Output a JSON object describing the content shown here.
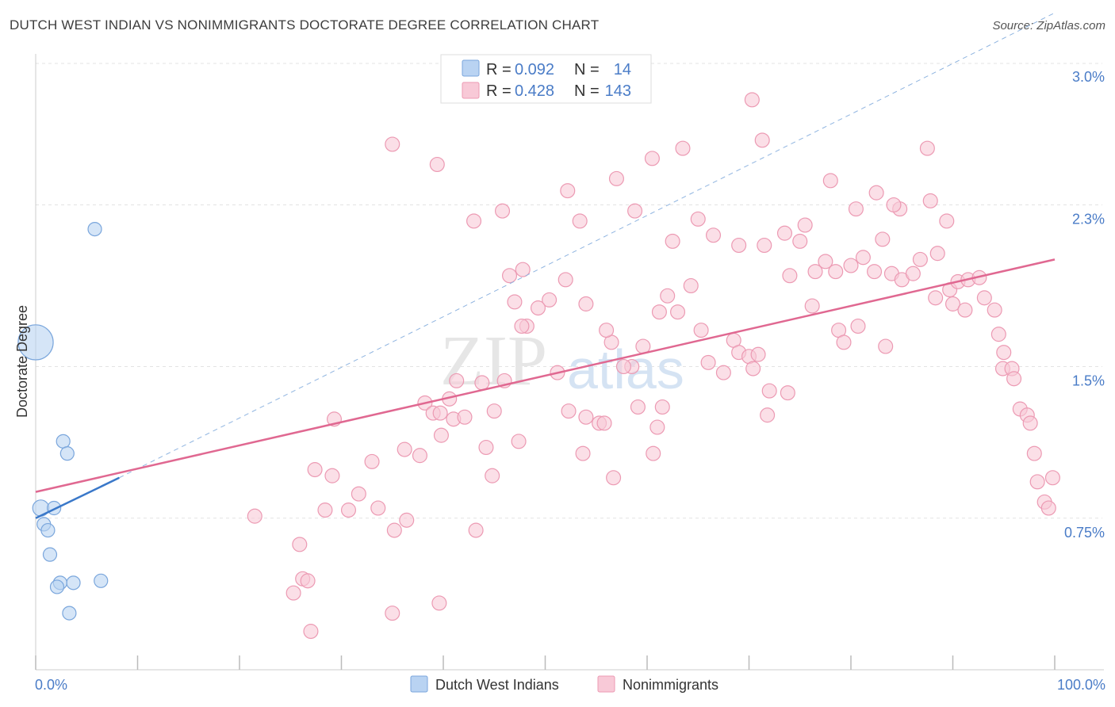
{
  "colors": {
    "blue_fill": "#b9d3f2",
    "blue_stroke": "#7aa6dc",
    "blue_line": "#3a78c9",
    "pink_fill": "#f8c9d7",
    "pink_stroke": "#ec9ab3",
    "pink_line": "#e06891",
    "label_blue": "#4a7cc7",
    "grid": "#e3e3e3"
  },
  "chart_data": {
    "type": "scatter",
    "title": "DUTCH WEST INDIAN VS NONIMMIGRANTS DOCTORATE DEGREE CORRELATION CHART",
    "source": "Source: ZipAtlas.com",
    "xlabel": "",
    "ylabel": "Doctorate Degree",
    "xlim": [
      0,
      100
    ],
    "ylim": [
      0,
      3.0
    ],
    "x_tick_labels": [
      {
        "value": 0,
        "label": "0.0%"
      },
      {
        "value": 100,
        "label": "100.0%"
      }
    ],
    "y_tick_labels": [
      {
        "value": 0.75,
        "label": "0.75%"
      },
      {
        "value": 1.5,
        "label": "1.5%"
      },
      {
        "value": 2.3,
        "label": "2.3%"
      },
      {
        "value": 3.0,
        "label": "3.0%"
      }
    ],
    "watermark": [
      "ZIP",
      "atlas"
    ],
    "legend": [
      {
        "series": "Dutch West Indians",
        "r_label": "R =",
        "r_value": "0.092",
        "n_label": "N =",
        "n_value": "14"
      },
      {
        "series": "Nonimmigrants",
        "r_label": "R =",
        "r_value": "0.428",
        "n_label": "N =",
        "n_value": "143"
      }
    ],
    "series": [
      {
        "name": "Dutch West Indians",
        "trend": {
          "x0": 0,
          "y0": 0.75,
          "x1": 8.2,
          "y1": 0.95,
          "dash_to": {
            "x": 100,
            "y": 3.25
          }
        },
        "points": [
          {
            "x": 0.0,
            "y": 1.62,
            "s": 2.6
          },
          {
            "x": 5.8,
            "y": 2.18,
            "s": 1
          },
          {
            "x": 0.5,
            "y": 0.8,
            "s": 1.2
          },
          {
            "x": 1.8,
            "y": 0.8,
            "s": 1
          },
          {
            "x": 0.8,
            "y": 0.72,
            "s": 1
          },
          {
            "x": 1.2,
            "y": 0.69,
            "s": 1
          },
          {
            "x": 2.7,
            "y": 1.13,
            "s": 1
          },
          {
            "x": 3.1,
            "y": 1.07,
            "s": 1
          },
          {
            "x": 1.4,
            "y": 0.57,
            "s": 1
          },
          {
            "x": 2.4,
            "y": 0.43,
            "s": 1
          },
          {
            "x": 2.1,
            "y": 0.41,
            "s": 1
          },
          {
            "x": 3.7,
            "y": 0.43,
            "s": 1
          },
          {
            "x": 6.4,
            "y": 0.44,
            "s": 1
          },
          {
            "x": 3.3,
            "y": 0.28,
            "s": 1
          }
        ]
      },
      {
        "name": "Nonimmigrants",
        "trend": {
          "x0": 0,
          "y0": 0.88,
          "x1": 100,
          "y1": 2.03
        },
        "points": [
          {
            "x": 35.0,
            "y": 2.6
          },
          {
            "x": 39.4,
            "y": 2.5
          },
          {
            "x": 43.0,
            "y": 2.22
          },
          {
            "x": 45.8,
            "y": 2.27
          },
          {
            "x": 52.2,
            "y": 2.37
          },
          {
            "x": 53.4,
            "y": 2.22
          },
          {
            "x": 57.0,
            "y": 2.43
          },
          {
            "x": 58.8,
            "y": 2.27
          },
          {
            "x": 60.5,
            "y": 2.53
          },
          {
            "x": 63.5,
            "y": 2.58
          },
          {
            "x": 70.3,
            "y": 2.82
          },
          {
            "x": 71.3,
            "y": 2.62
          },
          {
            "x": 65.0,
            "y": 2.23
          },
          {
            "x": 62.5,
            "y": 2.12
          },
          {
            "x": 66.5,
            "y": 2.15
          },
          {
            "x": 69.0,
            "y": 2.1
          },
          {
            "x": 75.5,
            "y": 2.2
          },
          {
            "x": 78.0,
            "y": 2.42
          },
          {
            "x": 80.5,
            "y": 2.28
          },
          {
            "x": 82.5,
            "y": 2.36
          },
          {
            "x": 84.8,
            "y": 2.28
          },
          {
            "x": 87.5,
            "y": 2.58
          },
          {
            "x": 87.8,
            "y": 2.32
          },
          {
            "x": 88.5,
            "y": 2.06
          },
          {
            "x": 89.4,
            "y": 2.22
          },
          {
            "x": 84.2,
            "y": 2.3
          },
          {
            "x": 83.1,
            "y": 2.13
          },
          {
            "x": 73.5,
            "y": 2.16
          },
          {
            "x": 71.5,
            "y": 2.1
          },
          {
            "x": 75.0,
            "y": 2.12
          },
          {
            "x": 74.0,
            "y": 1.95
          },
          {
            "x": 76.5,
            "y": 1.97
          },
          {
            "x": 77.5,
            "y": 2.02
          },
          {
            "x": 78.5,
            "y": 1.97
          },
          {
            "x": 80.0,
            "y": 2.0
          },
          {
            "x": 81.2,
            "y": 2.04
          },
          {
            "x": 82.3,
            "y": 1.97
          },
          {
            "x": 84.0,
            "y": 1.96
          },
          {
            "x": 85.0,
            "y": 1.93
          },
          {
            "x": 86.1,
            "y": 1.96
          },
          {
            "x": 86.8,
            "y": 2.03
          },
          {
            "x": 89.7,
            "y": 1.88
          },
          {
            "x": 90.5,
            "y": 1.92
          },
          {
            "x": 91.5,
            "y": 1.93
          },
          {
            "x": 92.6,
            "y": 1.94
          },
          {
            "x": 88.3,
            "y": 1.84
          },
          {
            "x": 90.0,
            "y": 1.81
          },
          {
            "x": 91.2,
            "y": 1.78
          },
          {
            "x": 93.1,
            "y": 1.84
          },
          {
            "x": 94.1,
            "y": 1.78
          },
          {
            "x": 94.5,
            "y": 1.66
          },
          {
            "x": 95.0,
            "y": 1.57
          },
          {
            "x": 94.9,
            "y": 1.49
          },
          {
            "x": 95.8,
            "y": 1.49
          },
          {
            "x": 96.0,
            "y": 1.44
          },
          {
            "x": 96.6,
            "y": 1.29
          },
          {
            "x": 97.3,
            "y": 1.26
          },
          {
            "x": 97.6,
            "y": 1.22
          },
          {
            "x": 98.0,
            "y": 1.07
          },
          {
            "x": 98.3,
            "y": 0.93
          },
          {
            "x": 99.0,
            "y": 0.83
          },
          {
            "x": 99.4,
            "y": 0.8
          },
          {
            "x": 99.8,
            "y": 0.95
          },
          {
            "x": 76.2,
            "y": 1.8
          },
          {
            "x": 78.8,
            "y": 1.68
          },
          {
            "x": 79.3,
            "y": 1.62
          },
          {
            "x": 80.7,
            "y": 1.7
          },
          {
            "x": 83.4,
            "y": 1.6
          },
          {
            "x": 62.0,
            "y": 1.85
          },
          {
            "x": 63.0,
            "y": 1.77
          },
          {
            "x": 64.3,
            "y": 1.9
          },
          {
            "x": 65.3,
            "y": 1.68
          },
          {
            "x": 68.5,
            "y": 1.63
          },
          {
            "x": 69.0,
            "y": 1.57
          },
          {
            "x": 70.0,
            "y": 1.55
          },
          {
            "x": 70.4,
            "y": 1.49
          },
          {
            "x": 70.9,
            "y": 1.56
          },
          {
            "x": 67.5,
            "y": 1.47
          },
          {
            "x": 66.0,
            "y": 1.52
          },
          {
            "x": 72.0,
            "y": 1.38
          },
          {
            "x": 71.8,
            "y": 1.26
          },
          {
            "x": 61.2,
            "y": 1.77
          },
          {
            "x": 59.6,
            "y": 1.6
          },
          {
            "x": 58.5,
            "y": 1.5
          },
          {
            "x": 57.7,
            "y": 1.5
          },
          {
            "x": 56.5,
            "y": 1.62
          },
          {
            "x": 56.0,
            "y": 1.68
          },
          {
            "x": 54.0,
            "y": 1.81
          },
          {
            "x": 50.4,
            "y": 1.83
          },
          {
            "x": 49.3,
            "y": 1.79
          },
          {
            "x": 48.2,
            "y": 1.7
          },
          {
            "x": 47.7,
            "y": 1.7
          },
          {
            "x": 47.0,
            "y": 1.82
          },
          {
            "x": 46.5,
            "y": 1.95
          },
          {
            "x": 47.8,
            "y": 1.98
          },
          {
            "x": 46.0,
            "y": 1.43
          },
          {
            "x": 43.8,
            "y": 1.42
          },
          {
            "x": 41.3,
            "y": 1.43
          },
          {
            "x": 40.6,
            "y": 1.34
          },
          {
            "x": 38.2,
            "y": 1.32
          },
          {
            "x": 39.0,
            "y": 1.27
          },
          {
            "x": 39.7,
            "y": 1.27
          },
          {
            "x": 41.0,
            "y": 1.24
          },
          {
            "x": 42.1,
            "y": 1.25
          },
          {
            "x": 45.0,
            "y": 1.28
          },
          {
            "x": 47.4,
            "y": 1.13
          },
          {
            "x": 44.2,
            "y": 1.1
          },
          {
            "x": 44.8,
            "y": 0.96
          },
          {
            "x": 39.8,
            "y": 1.16
          },
          {
            "x": 36.2,
            "y": 1.09
          },
          {
            "x": 37.7,
            "y": 1.06
          },
          {
            "x": 33.0,
            "y": 1.03
          },
          {
            "x": 29.3,
            "y": 1.24
          },
          {
            "x": 27.4,
            "y": 0.99
          },
          {
            "x": 29.1,
            "y": 0.96
          },
          {
            "x": 31.7,
            "y": 0.87
          },
          {
            "x": 30.7,
            "y": 0.79
          },
          {
            "x": 28.4,
            "y": 0.79
          },
          {
            "x": 33.6,
            "y": 0.8
          },
          {
            "x": 35.2,
            "y": 0.69
          },
          {
            "x": 36.4,
            "y": 0.74
          },
          {
            "x": 43.2,
            "y": 0.69
          },
          {
            "x": 25.9,
            "y": 0.62
          },
          {
            "x": 26.2,
            "y": 0.45
          },
          {
            "x": 26.7,
            "y": 0.44
          },
          {
            "x": 25.3,
            "y": 0.38
          },
          {
            "x": 35.0,
            "y": 0.28
          },
          {
            "x": 39.6,
            "y": 0.33
          },
          {
            "x": 27.0,
            "y": 0.19
          },
          {
            "x": 21.5,
            "y": 0.76
          },
          {
            "x": 52.3,
            "y": 1.28
          },
          {
            "x": 54.0,
            "y": 1.25
          },
          {
            "x": 55.3,
            "y": 1.22
          },
          {
            "x": 53.7,
            "y": 1.07
          },
          {
            "x": 56.7,
            "y": 0.95
          },
          {
            "x": 59.1,
            "y": 1.3
          },
          {
            "x": 61.0,
            "y": 1.2
          },
          {
            "x": 61.5,
            "y": 1.3
          },
          {
            "x": 60.6,
            "y": 1.07
          },
          {
            "x": 55.8,
            "y": 1.22
          },
          {
            "x": 52.0,
            "y": 1.93
          },
          {
            "x": 51.2,
            "y": 1.47
          },
          {
            "x": 73.8,
            "y": 1.37
          }
        ]
      }
    ]
  }
}
